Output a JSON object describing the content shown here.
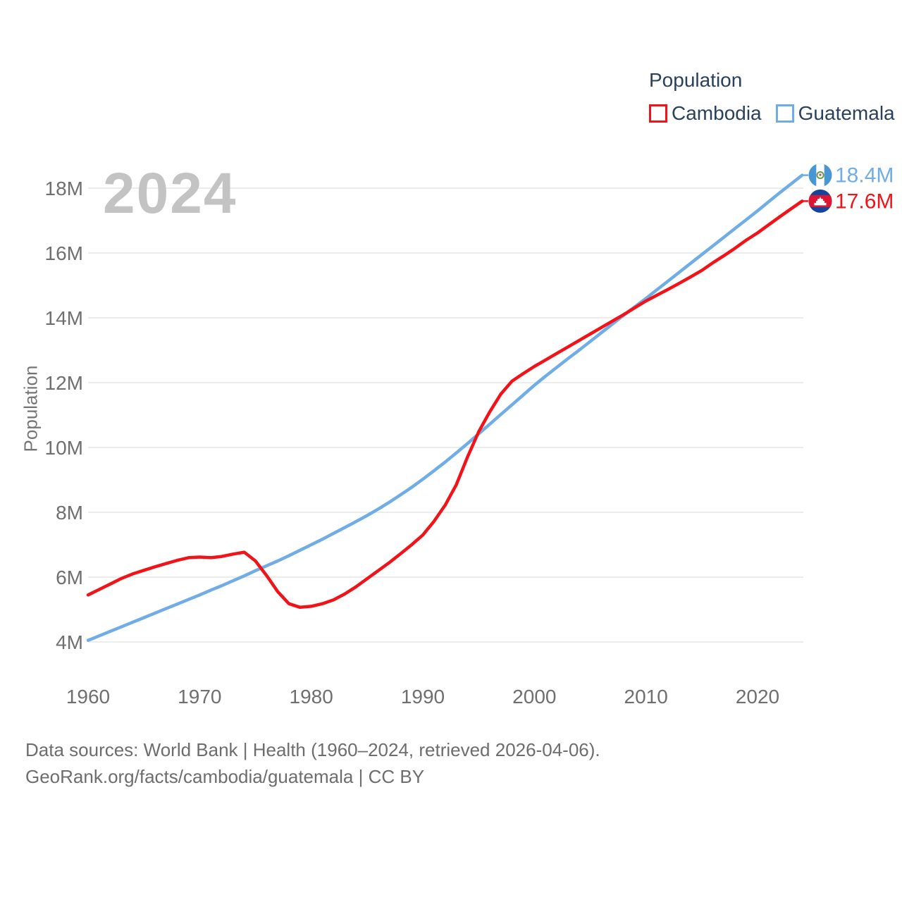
{
  "legend": {
    "title": "Population",
    "items": [
      {
        "label": "Cambodia",
        "color": "#f11318"
      },
      {
        "label": "Guatemala",
        "color": "#70ade6"
      }
    ]
  },
  "watermark": "2024",
  "footer": {
    "line1": "Data sources: World Bank | Health (1960–2024, retrieved 2026-04-06).",
    "line2": "GeoRank.org/facts/cambodia/guatemala | CC BY"
  },
  "chart_data": {
    "type": "line",
    "title": "Population",
    "xlabel": "",
    "ylabel": "Population",
    "values_unit": "millions",
    "grid": true,
    "legend_position": "top-right",
    "ylim_millions": [
      4,
      18.4
    ],
    "xlim": [
      1960,
      2024
    ],
    "x_ticks": [
      1960,
      1970,
      1980,
      1990,
      2000,
      2010,
      2020
    ],
    "y_ticks": [
      {
        "value": 4,
        "label": "4M"
      },
      {
        "value": 6,
        "label": "6M"
      },
      {
        "value": 8,
        "label": "8M"
      },
      {
        "value": 10,
        "label": "10M"
      },
      {
        "value": 12,
        "label": "12M"
      },
      {
        "value": 14,
        "label": "14M"
      },
      {
        "value": 16,
        "label": "16M"
      },
      {
        "value": 18,
        "label": "18M"
      }
    ],
    "x": [
      1960,
      1961,
      1962,
      1963,
      1964,
      1965,
      1966,
      1967,
      1968,
      1969,
      1970,
      1971,
      1972,
      1973,
      1974,
      1975,
      1976,
      1977,
      1978,
      1979,
      1980,
      1981,
      1982,
      1983,
      1984,
      1985,
      1986,
      1987,
      1988,
      1989,
      1990,
      1991,
      1992,
      1993,
      1994,
      1995,
      1996,
      1997,
      1998,
      1999,
      2000,
      2001,
      2002,
      2003,
      2004,
      2005,
      2006,
      2007,
      2008,
      2009,
      2010,
      2011,
      2012,
      2013,
      2014,
      2015,
      2016,
      2017,
      2018,
      2019,
      2020,
      2021,
      2022,
      2023,
      2024
    ],
    "series": [
      {
        "name": "Guatemala",
        "color": "#70ade6",
        "end_label": "18.4M",
        "values": [
          4.05,
          4.19,
          4.33,
          4.47,
          4.61,
          4.75,
          4.89,
          5.03,
          5.17,
          5.31,
          5.45,
          5.6,
          5.74,
          5.89,
          6.04,
          6.2,
          6.35,
          6.5,
          6.66,
          6.83,
          7.0,
          7.17,
          7.35,
          7.53,
          7.71,
          7.9,
          8.1,
          8.31,
          8.54,
          8.77,
          9.02,
          9.28,
          9.55,
          9.83,
          10.12,
          10.42,
          10.72,
          11.02,
          11.32,
          11.62,
          11.92,
          12.2,
          12.47,
          12.74,
          13.0,
          13.27,
          13.54,
          13.81,
          14.08,
          14.34,
          14.6,
          14.87,
          15.14,
          15.41,
          15.68,
          15.95,
          16.22,
          16.49,
          16.76,
          17.03,
          17.3,
          17.58,
          17.86,
          18.13,
          18.4
        ]
      },
      {
        "name": "Cambodia",
        "color": "#f11318",
        "end_label": "17.6M",
        "values": [
          5.45,
          5.62,
          5.79,
          5.96,
          6.1,
          6.21,
          6.32,
          6.42,
          6.52,
          6.6,
          6.62,
          6.6,
          6.64,
          6.71,
          6.77,
          6.5,
          6.05,
          5.55,
          5.18,
          5.07,
          5.1,
          5.18,
          5.3,
          5.48,
          5.7,
          5.95,
          6.2,
          6.45,
          6.72,
          7.0,
          7.3,
          7.72,
          8.22,
          8.85,
          9.7,
          10.48,
          11.1,
          11.65,
          12.05,
          12.28,
          12.5,
          12.7,
          12.9,
          13.1,
          13.3,
          13.5,
          13.7,
          13.9,
          14.1,
          14.31,
          14.52,
          14.7,
          14.88,
          15.07,
          15.26,
          15.46,
          15.7,
          15.92,
          16.15,
          16.4,
          16.62,
          16.87,
          17.12,
          17.36,
          17.6
        ]
      }
    ]
  }
}
